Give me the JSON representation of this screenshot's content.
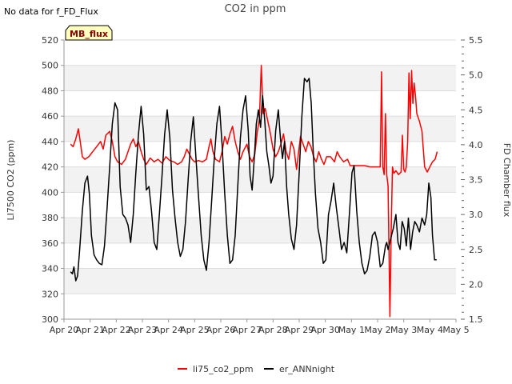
{
  "chart_data": {
    "type": "line",
    "title": "CO2 in ppm",
    "note": "No data for f_FD_Flux",
    "badge": "MB_flux",
    "ylabel": "LI7500 CO2 (ppm)",
    "y2label": "FD Chamber flux",
    "xlabel": "",
    "ylim": [
      300,
      520
    ],
    "y2lim": [
      1.5,
      5.5
    ],
    "y_ticks": [
      300,
      320,
      340,
      360,
      380,
      400,
      420,
      440,
      460,
      480,
      500,
      520
    ],
    "y2_ticks": [
      1.5,
      2.0,
      2.5,
      3.0,
      3.5,
      4.0,
      4.5,
      5.0,
      5.5
    ],
    "xlim": [
      0,
      15
    ],
    "x_ticks": [
      {
        "x": 0,
        "label": "Apr 20"
      },
      {
        "x": 1,
        "label": "Apr 21"
      },
      {
        "x": 2,
        "label": "Apr 22"
      },
      {
        "x": 3,
        "label": "Apr 23"
      },
      {
        "x": 4,
        "label": "Apr 24"
      },
      {
        "x": 5,
        "label": "Apr 25"
      },
      {
        "x": 6,
        "label": "Apr 26"
      },
      {
        "x": 7,
        "label": "Apr 27"
      },
      {
        "x": 8,
        "label": "Apr 28"
      },
      {
        "x": 9,
        "label": "Apr 29"
      },
      {
        "x": 10,
        "label": "Apr 30"
      },
      {
        "x": 11,
        "label": "May 1"
      },
      {
        "x": 12,
        "label": "May 2"
      },
      {
        "x": 13,
        "label": "May 3"
      },
      {
        "x": 14,
        "label": "May 4"
      },
      {
        "x": 15,
        "label": "May 5"
      }
    ],
    "grid": "horizontal bands",
    "legend_position": "bottom-center",
    "series": [
      {
        "name": "li75_co2_ppm",
        "axis": "left",
        "color": "#ff0000",
        "points": [
          [
            0.25,
            438
          ],
          [
            0.35,
            436
          ],
          [
            0.45,
            442
          ],
          [
            0.55,
            450
          ],
          [
            0.62,
            440
          ],
          [
            0.7,
            428
          ],
          [
            0.8,
            426
          ],
          [
            0.95,
            428
          ],
          [
            1.1,
            432
          ],
          [
            1.25,
            436
          ],
          [
            1.4,
            440
          ],
          [
            1.5,
            434
          ],
          [
            1.6,
            445
          ],
          [
            1.75,
            448
          ],
          [
            1.85,
            440
          ],
          [
            1.95,
            428
          ],
          [
            2.05,
            424
          ],
          [
            2.2,
            422
          ],
          [
            2.35,
            426
          ],
          [
            2.45,
            432
          ],
          [
            2.55,
            438
          ],
          [
            2.65,
            442
          ],
          [
            2.75,
            436
          ],
          [
            2.85,
            440
          ],
          [
            2.95,
            432
          ],
          [
            3.05,
            426
          ],
          [
            3.15,
            422
          ],
          [
            3.3,
            427
          ],
          [
            3.45,
            424
          ],
          [
            3.6,
            426
          ],
          [
            3.75,
            423
          ],
          [
            3.9,
            428
          ],
          [
            4.05,
            425
          ],
          [
            4.2,
            424
          ],
          [
            4.35,
            422
          ],
          [
            4.5,
            424
          ],
          [
            4.6,
            428
          ],
          [
            4.7,
            434
          ],
          [
            4.8,
            430
          ],
          [
            4.9,
            426
          ],
          [
            5.0,
            424
          ],
          [
            5.15,
            425
          ],
          [
            5.3,
            424
          ],
          [
            5.45,
            426
          ],
          [
            5.55,
            436
          ],
          [
            5.62,
            442
          ],
          [
            5.7,
            432
          ],
          [
            5.8,
            426
          ],
          [
            5.95,
            424
          ],
          [
            6.05,
            432
          ],
          [
            6.15,
            444
          ],
          [
            6.25,
            438
          ],
          [
            6.35,
            446
          ],
          [
            6.45,
            452
          ],
          [
            6.55,
            440
          ],
          [
            6.65,
            432
          ],
          [
            6.75,
            426
          ],
          [
            6.85,
            432
          ],
          [
            7.0,
            438
          ],
          [
            7.1,
            428
          ],
          [
            7.2,
            424
          ],
          [
            7.3,
            430
          ],
          [
            7.4,
            448
          ],
          [
            7.48,
            458
          ],
          [
            7.55,
            500
          ],
          [
            7.62,
            462
          ],
          [
            7.7,
            466
          ],
          [
            7.8,
            456
          ],
          [
            7.9,
            446
          ],
          [
            8.0,
            434
          ],
          [
            8.1,
            428
          ],
          [
            8.2,
            432
          ],
          [
            8.3,
            438
          ],
          [
            8.4,
            446
          ],
          [
            8.5,
            432
          ],
          [
            8.6,
            426
          ],
          [
            8.7,
            440
          ],
          [
            8.8,
            434
          ],
          [
            8.9,
            418
          ],
          [
            8.98,
            432
          ],
          [
            9.05,
            444
          ],
          [
            9.15,
            438
          ],
          [
            9.25,
            432
          ],
          [
            9.35,
            440
          ],
          [
            9.45,
            436
          ],
          [
            9.55,
            428
          ],
          [
            9.65,
            424
          ],
          [
            9.75,
            432
          ],
          [
            9.85,
            426
          ],
          [
            9.95,
            422
          ],
          [
            10.05,
            428
          ],
          [
            10.2,
            428
          ],
          [
            10.35,
            424
          ],
          [
            10.45,
            432
          ],
          [
            10.55,
            428
          ],
          [
            10.7,
            424
          ],
          [
            10.85,
            426
          ],
          [
            10.95,
            421
          ],
          [
            11.1,
            421
          ],
          [
            11.3,
            421
          ],
          [
            11.5,
            421
          ],
          [
            11.7,
            420
          ],
          [
            11.85,
            420
          ],
          [
            12.0,
            420
          ],
          [
            12.1,
            420
          ],
          [
            12.15,
            495
          ],
          [
            12.2,
            420
          ],
          [
            12.25,
            414
          ],
          [
            12.3,
            462
          ],
          [
            12.35,
            414
          ],
          [
            12.4,
            405
          ],
          [
            12.47,
            302
          ],
          [
            12.52,
            370
          ],
          [
            12.57,
            420
          ],
          [
            12.62,
            415
          ],
          [
            12.7,
            417
          ],
          [
            12.8,
            414
          ],
          [
            12.9,
            416
          ],
          [
            12.95,
            445
          ],
          [
            13.0,
            418
          ],
          [
            13.05,
            416
          ],
          [
            13.1,
            420
          ],
          [
            13.15,
            440
          ],
          [
            13.2,
            494
          ],
          [
            13.25,
            458
          ],
          [
            13.3,
            496
          ],
          [
            13.35,
            470
          ],
          [
            13.4,
            486
          ],
          [
            13.45,
            476
          ],
          [
            13.5,
            462
          ],
          [
            13.6,
            456
          ],
          [
            13.7,
            448
          ],
          [
            13.8,
            420
          ],
          [
            13.9,
            416
          ],
          [
            14.0,
            420
          ],
          [
            14.1,
            424
          ],
          [
            14.2,
            426
          ],
          [
            14.28,
            432
          ]
        ]
      },
      {
        "name": "er_ANNnight",
        "axis": "right",
        "color": "#000000",
        "points": [
          [
            0.25,
            2.18
          ],
          [
            0.32,
            2.15
          ],
          [
            0.38,
            2.25
          ],
          [
            0.45,
            2.05
          ],
          [
            0.52,
            2.12
          ],
          [
            0.6,
            2.5
          ],
          [
            0.7,
            3.05
          ],
          [
            0.8,
            3.45
          ],
          [
            0.9,
            3.55
          ],
          [
            0.97,
            3.3
          ],
          [
            1.05,
            2.7
          ],
          [
            1.15,
            2.42
          ],
          [
            1.25,
            2.35
          ],
          [
            1.35,
            2.3
          ],
          [
            1.45,
            2.28
          ],
          [
            1.55,
            2.55
          ],
          [
            1.65,
            3.1
          ],
          [
            1.75,
            3.7
          ],
          [
            1.85,
            4.3
          ],
          [
            1.95,
            4.6
          ],
          [
            2.05,
            4.5
          ],
          [
            2.15,
            3.4
          ],
          [
            2.25,
            3.0
          ],
          [
            2.35,
            2.95
          ],
          [
            2.45,
            2.85
          ],
          [
            2.55,
            2.6
          ],
          [
            2.65,
            3.0
          ],
          [
            2.75,
            3.6
          ],
          [
            2.85,
            4.15
          ],
          [
            2.95,
            4.55
          ],
          [
            3.05,
            4.15
          ],
          [
            3.15,
            3.35
          ],
          [
            3.25,
            3.4
          ],
          [
            3.35,
            3.05
          ],
          [
            3.45,
            2.6
          ],
          [
            3.55,
            2.5
          ],
          [
            3.65,
            3.0
          ],
          [
            3.75,
            3.55
          ],
          [
            3.85,
            4.15
          ],
          [
            3.95,
            4.5
          ],
          [
            4.05,
            4.1
          ],
          [
            4.15,
            3.35
          ],
          [
            4.25,
            2.95
          ],
          [
            4.35,
            2.6
          ],
          [
            4.45,
            2.4
          ],
          [
            4.55,
            2.5
          ],
          [
            4.65,
            2.9
          ],
          [
            4.75,
            3.5
          ],
          [
            4.85,
            4.05
          ],
          [
            4.95,
            4.4
          ],
          [
            5.05,
            3.8
          ],
          [
            5.15,
            3.25
          ],
          [
            5.25,
            2.7
          ],
          [
            5.35,
            2.35
          ],
          [
            5.45,
            2.2
          ],
          [
            5.55,
            2.6
          ],
          [
            5.65,
            3.2
          ],
          [
            5.75,
            3.8
          ],
          [
            5.85,
            4.3
          ],
          [
            5.95,
            4.55
          ],
          [
            6.05,
            4.0
          ],
          [
            6.15,
            3.3
          ],
          [
            6.25,
            2.7
          ],
          [
            6.35,
            2.3
          ],
          [
            6.45,
            2.35
          ],
          [
            6.55,
            2.7
          ],
          [
            6.65,
            3.4
          ],
          [
            6.75,
            4.1
          ],
          [
            6.85,
            4.5
          ],
          [
            6.95,
            4.7
          ],
          [
            7.05,
            4.2
          ],
          [
            7.12,
            3.55
          ],
          [
            7.2,
            3.35
          ],
          [
            7.28,
            3.8
          ],
          [
            7.36,
            4.3
          ],
          [
            7.44,
            4.5
          ],
          [
            7.52,
            4.25
          ],
          [
            7.6,
            4.7
          ],
          [
            7.68,
            4.35
          ],
          [
            7.76,
            3.9
          ],
          [
            7.84,
            3.7
          ],
          [
            7.92,
            3.45
          ],
          [
            8.0,
            3.55
          ],
          [
            8.1,
            4.2
          ],
          [
            8.2,
            4.5
          ],
          [
            8.28,
            4.1
          ],
          [
            8.36,
            3.8
          ],
          [
            8.44,
            4.05
          ],
          [
            8.52,
            3.4
          ],
          [
            8.6,
            3.0
          ],
          [
            8.7,
            2.65
          ],
          [
            8.8,
            2.5
          ],
          [
            8.9,
            2.85
          ],
          [
            9.0,
            3.6
          ],
          [
            9.1,
            4.4
          ],
          [
            9.2,
            4.95
          ],
          [
            9.3,
            4.9
          ],
          [
            9.38,
            4.95
          ],
          [
            9.46,
            4.6
          ],
          [
            9.54,
            3.9
          ],
          [
            9.62,
            3.3
          ],
          [
            9.72,
            2.8
          ],
          [
            9.82,
            2.6
          ],
          [
            9.92,
            2.3
          ],
          [
            10.02,
            2.35
          ],
          [
            10.12,
            3.0
          ],
          [
            10.22,
            3.2
          ],
          [
            10.32,
            3.45
          ],
          [
            10.42,
            3.1
          ],
          [
            10.52,
            2.8
          ],
          [
            10.62,
            2.5
          ],
          [
            10.72,
            2.6
          ],
          [
            10.82,
            2.45
          ],
          [
            10.92,
            3.0
          ],
          [
            11.02,
            3.6
          ],
          [
            11.1,
            3.7
          ],
          [
            11.2,
            3.05
          ],
          [
            11.3,
            2.6
          ],
          [
            11.4,
            2.3
          ],
          [
            11.5,
            2.15
          ],
          [
            11.6,
            2.2
          ],
          [
            11.7,
            2.4
          ],
          [
            11.8,
            2.7
          ],
          [
            11.9,
            2.75
          ],
          [
            12.0,
            2.6
          ],
          [
            12.1,
            2.25
          ],
          [
            12.2,
            2.3
          ],
          [
            12.3,
            2.55
          ],
          [
            12.35,
            2.6
          ],
          [
            12.4,
            2.5
          ],
          [
            12.5,
            2.65
          ],
          [
            12.6,
            2.8
          ],
          [
            12.7,
            3.0
          ],
          [
            12.78,
            2.6
          ],
          [
            12.86,
            2.5
          ],
          [
            12.94,
            2.9
          ],
          [
            13.02,
            2.8
          ],
          [
            13.1,
            2.55
          ],
          [
            13.18,
            2.95
          ],
          [
            13.26,
            2.5
          ],
          [
            13.34,
            2.75
          ],
          [
            13.42,
            2.9
          ],
          [
            13.5,
            2.85
          ],
          [
            13.6,
            2.75
          ],
          [
            13.7,
            2.95
          ],
          [
            13.8,
            2.85
          ],
          [
            13.88,
            3.0
          ],
          [
            13.96,
            3.45
          ],
          [
            14.04,
            3.25
          ],
          [
            14.1,
            2.7
          ],
          [
            14.18,
            2.35
          ],
          [
            14.26,
            2.35
          ]
        ]
      }
    ]
  }
}
